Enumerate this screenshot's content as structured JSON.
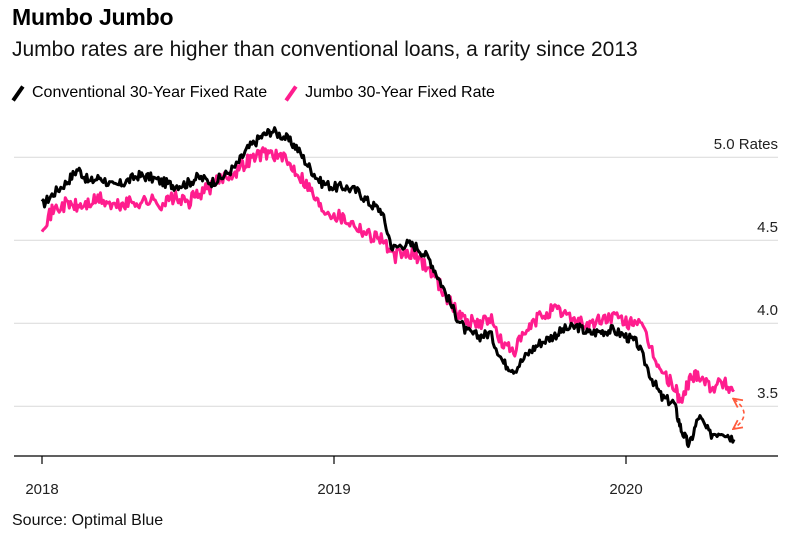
{
  "title": "Mumbo Jumbo",
  "subtitle": "Jumbo rates are higher than conventional loans, a rarity since 2013",
  "source": "Source: Optimal Blue",
  "colors": {
    "conventional": "#000000",
    "jumbo": "#ff1d8e",
    "annotation": "#ff5a3c",
    "grid": "#d9d9d9"
  },
  "legend": [
    {
      "label": "Conventional 30-Year Fixed Rate",
      "color": "#000000"
    },
    {
      "label": "Jumbo 30-Year Fixed Rate",
      "color": "#ff1d8e"
    }
  ],
  "chart_data": {
    "type": "line",
    "title": "Mumbo Jumbo",
    "subtitle": "Jumbo rates are higher than conventional loans, a rarity since 2013",
    "ylabel": "Rates",
    "ylim": [
      3.2,
      5.2
    ],
    "yticks": [
      3.5,
      4.0,
      4.5,
      5.0
    ],
    "ytick_labels": [
      "3.5",
      "4.0",
      "4.5",
      "5.0 Rates"
    ],
    "xticks": [
      "2018",
      "2019",
      "2020"
    ],
    "xtick_dates": [
      "2018-01-01",
      "2019-01-01",
      "2020-01-01"
    ],
    "xlim": [
      "2018-01-01",
      "2020-05-31"
    ],
    "grid": true,
    "legend_position": "top-left",
    "series": [
      {
        "name": "Conventional 30-Year Fixed Rate",
        "x": [
          "2018-01-01",
          "2018-01-15",
          "2018-02-01",
          "2018-02-15",
          "2018-03-01",
          "2018-03-15",
          "2018-04-01",
          "2018-04-15",
          "2018-05-01",
          "2018-05-15",
          "2018-06-01",
          "2018-06-15",
          "2018-07-01",
          "2018-07-15",
          "2018-08-01",
          "2018-08-15",
          "2018-09-01",
          "2018-09-15",
          "2018-10-01",
          "2018-10-15",
          "2018-11-01",
          "2018-11-15",
          "2018-12-01",
          "2018-12-15",
          "2019-01-01",
          "2019-01-15",
          "2019-02-01",
          "2019-02-15",
          "2019-03-01",
          "2019-03-15",
          "2019-04-01",
          "2019-04-15",
          "2019-05-01",
          "2019-05-15",
          "2019-06-01",
          "2019-06-15",
          "2019-07-01",
          "2019-07-15",
          "2019-08-01",
          "2019-08-15",
          "2019-09-01",
          "2019-09-15",
          "2019-10-01",
          "2019-10-15",
          "2019-11-01",
          "2019-11-15",
          "2019-12-01",
          "2019-12-15",
          "2020-01-01",
          "2020-01-15",
          "2020-02-01",
          "2020-02-15",
          "2020-03-01",
          "2020-03-10",
          "2020-03-20",
          "2020-04-01",
          "2020-04-15",
          "2020-05-01",
          "2020-05-15"
        ],
        "values": [
          4.71,
          4.78,
          4.85,
          4.93,
          4.85,
          4.88,
          4.82,
          4.85,
          4.89,
          4.88,
          4.85,
          4.83,
          4.84,
          4.88,
          4.85,
          4.88,
          4.95,
          5.05,
          5.12,
          5.16,
          5.12,
          5.06,
          4.94,
          4.85,
          4.82,
          4.82,
          4.79,
          4.72,
          4.68,
          4.45,
          4.48,
          4.46,
          4.38,
          4.24,
          4.06,
          3.95,
          3.92,
          3.94,
          3.76,
          3.72,
          3.82,
          3.88,
          3.92,
          3.96,
          3.98,
          3.94,
          3.95,
          3.96,
          3.92,
          3.88,
          3.68,
          3.55,
          3.52,
          3.36,
          3.26,
          3.44,
          3.33,
          3.35,
          3.3
        ]
      },
      {
        "name": "Jumbo 30-Year Fixed Rate",
        "x": [
          "2018-01-01",
          "2018-01-15",
          "2018-02-01",
          "2018-02-15",
          "2018-03-01",
          "2018-03-15",
          "2018-04-01",
          "2018-04-15",
          "2018-05-01",
          "2018-05-15",
          "2018-06-01",
          "2018-06-15",
          "2018-07-01",
          "2018-07-15",
          "2018-08-01",
          "2018-08-15",
          "2018-09-01",
          "2018-09-15",
          "2018-10-01",
          "2018-10-15",
          "2018-11-01",
          "2018-11-15",
          "2018-12-01",
          "2018-12-15",
          "2019-01-01",
          "2019-01-15",
          "2019-02-01",
          "2019-02-15",
          "2019-03-01",
          "2019-03-15",
          "2019-04-01",
          "2019-04-15",
          "2019-05-01",
          "2019-05-15",
          "2019-06-01",
          "2019-06-15",
          "2019-07-01",
          "2019-07-15",
          "2019-08-01",
          "2019-08-15",
          "2019-09-01",
          "2019-09-15",
          "2019-10-01",
          "2019-10-15",
          "2019-11-01",
          "2019-11-15",
          "2019-12-01",
          "2019-12-15",
          "2020-01-01",
          "2020-01-15",
          "2020-02-01",
          "2020-02-15",
          "2020-03-01",
          "2020-03-10",
          "2020-03-20",
          "2020-04-01",
          "2020-04-15",
          "2020-05-01",
          "2020-05-15"
        ],
        "values": [
          4.59,
          4.68,
          4.72,
          4.7,
          4.72,
          4.75,
          4.7,
          4.72,
          4.73,
          4.74,
          4.72,
          4.76,
          4.72,
          4.78,
          4.82,
          4.88,
          4.92,
          4.98,
          5.02,
          5.03,
          4.98,
          4.92,
          4.82,
          4.7,
          4.66,
          4.63,
          4.58,
          4.53,
          4.52,
          4.4,
          4.42,
          4.4,
          4.32,
          4.22,
          4.08,
          4.02,
          4.0,
          4.03,
          3.86,
          3.84,
          3.96,
          4.04,
          4.08,
          4.06,
          4.02,
          3.98,
          4.02,
          4.04,
          4.0,
          4.02,
          3.85,
          3.7,
          3.62,
          3.52,
          3.66,
          3.7,
          3.62,
          3.64,
          3.6
        ]
      }
    ],
    "annotations": [
      {
        "type": "double-arrow",
        "x": "2020-05-25",
        "y_from": 3.59,
        "y_to": 3.33
      }
    ]
  }
}
